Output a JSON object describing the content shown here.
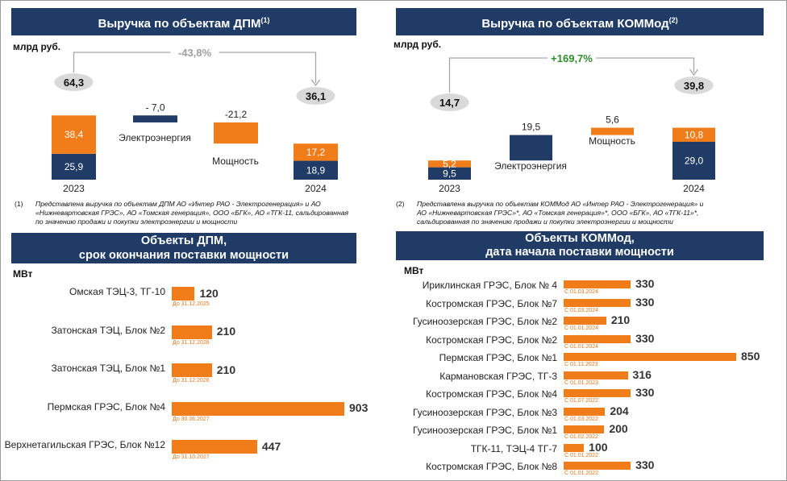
{
  "colors": {
    "navy": "#1f3b66",
    "orange": "#f07d19",
    "date_text": "#e5751c",
    "gray": "#a6a6a6",
    "green": "#2e8b2e"
  },
  "panel1": {
    "title": "Выручка по объектам ДПМ",
    "title_sup": "(1)",
    "unit": "млрд руб.",
    "change": "-43,8%",
    "start_value": "64,3",
    "end_value": "36,1",
    "footnote_num": "(1)",
    "footnote_lines": [
      "Представлена выручка по объектам ДПМ АО «Интер РАО - Электрогенерация» и АО",
      "«Нижневартовская ГРЭС», АО «Томская генерация», ООО «БГК», АО «ТГК-11, сальдированная",
      "по значению продажи и покупки электроэнергии и мощности"
    ]
  },
  "panel2": {
    "title": "Выручка по объектам КОММод",
    "title_sup": "(2)",
    "unit": "млрд руб.",
    "change": "+169,7%",
    "start_value": "14,7",
    "end_value": "39,8",
    "footnote_num": "(2)",
    "footnote_lines": [
      "Представлена выручка по объектам КОММод АО «Интер РАО - Электрогенерация» и",
      "АО «Нижневартовская ГРЭС»*, АО «Томская генерация»*, ООО «БГК», АО «ТГК-11»*,",
      "сальдированная по значению продажи и покупки электроэнергии и мощности"
    ]
  },
  "panel3": {
    "title_line1": "Объекты ДПМ,",
    "title_line2": "срок окончания поставки мощности",
    "unit": "МВт"
  },
  "panel4": {
    "title_line1": "Объекты КОММод,",
    "title_line2": "дата начала поставки мощности",
    "unit": "МВт"
  },
  "chart_data": [
    {
      "type": "bar",
      "subtype": "waterfall",
      "unit": "млрд руб.",
      "categories": [
        "2023",
        "Электроэнергия",
        "Мощность",
        "2024"
      ],
      "series": [
        {
          "name": "Электроэнергия",
          "values": [
            25.9,
            -7.0,
            null,
            18.9
          ],
          "labels": [
            "25,9",
            "- 7,0",
            "",
            "18,9"
          ]
        },
        {
          "name": "Мощность",
          "values": [
            38.4,
            null,
            -21.2,
            17.2
          ],
          "labels": [
            "38,4",
            "",
            "-21,2",
            "17,2"
          ]
        }
      ],
      "totals": [
        64.3,
        36.1
      ],
      "change": "-43,8%"
    },
    {
      "type": "bar",
      "subtype": "waterfall",
      "unit": "млрд руб.",
      "categories": [
        "2023",
        "Электроэнергия",
        "Мощность",
        "2024"
      ],
      "series": [
        {
          "name": "Электроэнергия",
          "values": [
            9.5,
            19.5,
            null,
            29.0
          ],
          "labels": [
            "9,5",
            "19,5",
            "",
            "29,0"
          ]
        },
        {
          "name": "Мощность",
          "values": [
            5.2,
            null,
            5.6,
            10.8
          ],
          "labels": [
            "5,2",
            "",
            "5,6",
            "10,8"
          ]
        }
      ],
      "totals": [
        14.7,
        39.8
      ],
      "change": "+169,7%"
    },
    {
      "type": "bar",
      "orientation": "horizontal",
      "unit": "МВт",
      "categories": [
        "Омская  ТЭЦ-3, ТГ-10",
        "Затонская ТЭЦ, Блок №2",
        "Затонская ТЭЦ, Блок №1",
        "Пермская ГРЭС, Блок №4",
        "Верхнетагильская ГРЭС, Блок №12"
      ],
      "values": [
        120,
        210,
        210,
        903,
        447
      ],
      "value_labels": [
        "120",
        "210",
        "210",
        "903",
        "447"
      ],
      "date_labels": [
        "До 31.12.2025",
        "До 31.12.2026",
        "До 31.12.2026",
        "До 30.06.2027",
        "До 31.10.2027"
      ],
      "xlim": [
        0,
        903
      ]
    },
    {
      "type": "bar",
      "orientation": "horizontal",
      "unit": "МВт",
      "categories": [
        "Ириклинская ГРЭС, Блок № 4",
        "Костромская ГРЭС, Блок №7",
        "Гусиноозерская ГРЭС, Блок №2",
        "Костромская ГРЭС, Блок №2",
        "Пермская ГРЭС, Блок №1",
        "Кармановская ГРЭС, ТГ-3",
        "Костромская ГРЭС, Блок №4",
        "Гусиноозерская ГРЭС, Блок №3",
        "Гусиноозерская ГРЭС, Блок №1",
        "ТГК-11, ТЭЦ-4 ТГ-7",
        "Костромская ГРЭС, Блок №8"
      ],
      "values": [
        330,
        330,
        210,
        330,
        850,
        316,
        330,
        204,
        200,
        100,
        330
      ],
      "value_labels": [
        "330",
        "330",
        "210",
        "330",
        "850",
        "316",
        "330",
        "204",
        "200",
        "100",
        "330"
      ],
      "date_labels": [
        "С 01.03.2024",
        "С 01.03.2024",
        "С 01.01.2024",
        "С 01.01.2024",
        "С 01.11.2023",
        "С 01.01.2023",
        "С 01.07.2022",
        "С 01.03.2022",
        "С 01.02.2022",
        "С 01.01.2022",
        "С 01.01.2022"
      ],
      "xlim": [
        0,
        850
      ]
    }
  ]
}
